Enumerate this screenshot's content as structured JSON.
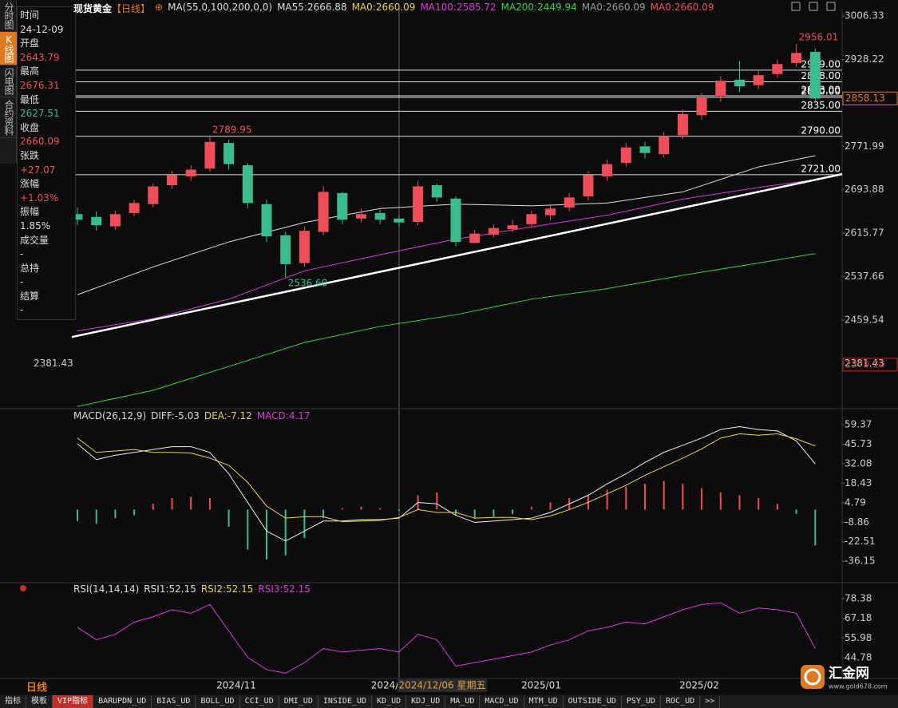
{
  "sidebar": {
    "tabs": [
      "分时图",
      "K线图",
      "闪电图",
      "合约资料"
    ]
  },
  "info_panel": {
    "rows": [
      {
        "label": "时间",
        "value": "24-12-09",
        "color": "#dddddd"
      },
      {
        "label": "开盘",
        "value": "2643.79",
        "color": "#ee4e5a"
      },
      {
        "label": "最高",
        "value": "2676.31",
        "color": "#ee4e5a"
      },
      {
        "label": "最低",
        "value": "2627.51",
        "color": "#3cbc8d"
      },
      {
        "label": "收盘",
        "value": "2660.09",
        "color": "#ee4e5a"
      },
      {
        "label": "张跌",
        "value": "+27.07",
        "color": "#ee4e5a"
      },
      {
        "label": "涨幅",
        "value": "+1.03%",
        "color": "#ee4e5a"
      },
      {
        "label": "振幅",
        "value": "1.85%",
        "color": "#dddddd"
      },
      {
        "label": "成交量",
        "value": "-",
        "color": "#dddddd"
      },
      {
        "label": "总持",
        "value": "-",
        "color": "#dddddd"
      },
      {
        "label": "结算",
        "value": "-",
        "color": "#dddddd"
      }
    ]
  },
  "main": {
    "title": "现货黄金",
    "period": "【日线】",
    "indicators": [
      {
        "text": "MA(55,0,100,200,0,0)",
        "color": "#dddddd"
      },
      {
        "text": "MA55:2666.88",
        "color": "#dddddd"
      },
      {
        "text": "MA0:2660.09",
        "color": "#e8d44d"
      },
      {
        "text": "MA100:2585.72",
        "color": "#d63bd6"
      },
      {
        "text": "MA200:2449.94",
        "color": "#3ccf3c"
      },
      {
        "text": "MA0:2660.09",
        "color": "#999999"
      },
      {
        "text": "MA0:2660.09",
        "color": "#ee4e5a"
      }
    ],
    "ylim": [
      2300,
      3018
    ],
    "yticks": [
      3006.33,
      2928.22,
      2771.99,
      2693.88,
      2615.77,
      2537.66,
      2459.54,
      2381.43
    ],
    "left_label": 2381.43,
    "candles": {
      "open": [
        2650,
        2645,
        2628,
        2652,
        2668,
        2702,
        2718,
        2732,
        2778,
        2738,
        2668,
        2612,
        2562,
        2618,
        2688,
        2642,
        2652,
        2642,
        2636,
        2702,
        2678,
        2598,
        2613,
        2623,
        2632,
        2648,
        2662,
        2682,
        2718,
        2742,
        2772,
        2758,
        2792,
        2828,
        2862,
        2892,
        2882,
        2902,
        2922,
        2942
      ],
      "high": [
        2662,
        2655,
        2656,
        2676,
        2705,
        2728,
        2738,
        2789.95,
        2784,
        2742,
        2676,
        2618,
        2628,
        2700,
        2690,
        2660,
        2658,
        2648,
        2710,
        2705,
        2682,
        2622,
        2632,
        2640,
        2656,
        2668,
        2688,
        2728,
        2748,
        2778,
        2780,
        2798,
        2838,
        2868,
        2898,
        2925,
        2908,
        2928,
        2956.01,
        2948
      ],
      "low": [
        2630,
        2620,
        2622,
        2646,
        2662,
        2695,
        2710,
        2726,
        2730,
        2660,
        2600,
        2536.6,
        2555,
        2612,
        2632,
        2635,
        2632,
        2628,
        2630,
        2672,
        2592,
        2600,
        2608,
        2618,
        2626,
        2640,
        2655,
        2675,
        2710,
        2735,
        2750,
        2752,
        2785,
        2820,
        2852,
        2870,
        2875,
        2895,
        2915,
        2850
      ],
      "close": [
        2640,
        2630,
        2650,
        2670,
        2700,
        2720,
        2730,
        2780,
        2740,
        2670,
        2610,
        2560,
        2620,
        2690,
        2640,
        2650,
        2640,
        2635,
        2700,
        2680,
        2600,
        2615,
        2625,
        2630,
        2650,
        2660,
        2680,
        2720,
        2740,
        2770,
        2760,
        2790,
        2830,
        2860,
        2890,
        2880,
        2900,
        2920,
        2940,
        2858
      ]
    },
    "ma_lines": {
      "index": [
        0,
        4,
        8,
        12,
        16,
        20,
        24,
        28,
        32,
        36,
        39
      ],
      "series": [
        {
          "color": "#dddddd",
          "values": [
            2505,
            2555,
            2600,
            2635,
            2660,
            2668,
            2665,
            2670,
            2690,
            2735,
            2755
          ]
        },
        {
          "color": "#d63bd6",
          "values": [
            2440,
            2462,
            2497,
            2548,
            2577,
            2605,
            2627,
            2648,
            2677,
            2698,
            2712
          ]
        },
        {
          "color": "#3ccf3c",
          "values": [
            2304,
            2333,
            2376,
            2419,
            2448,
            2469,
            2497,
            2516,
            2540,
            2562,
            2579
          ]
        }
      ]
    },
    "trendline": [
      2429,
      2722
    ],
    "levels": [
      {
        "value": 2909,
        "label": "2909.00"
      },
      {
        "value": 2888,
        "label": "2888.00"
      },
      {
        "value": 2863,
        "label": "2863.00"
      },
      {
        "value": 2860,
        "label": "2860.00"
      },
      {
        "value": 2835,
        "label": "2835.00"
      },
      {
        "value": 2790,
        "label": "2790.00"
      },
      {
        "value": 2721,
        "label": "2721.00"
      }
    ],
    "price_tags": [
      {
        "value": 2858.13,
        "color": "#e07a20"
      },
      {
        "value": 2379.2,
        "label": "2379.20",
        "color": "#c0302a"
      }
    ],
    "annotations": [
      {
        "value": 2956.01,
        "color": "#ee4e5a"
      },
      {
        "value": 2789.95,
        "color": "#ee4e5a"
      },
      {
        "value": 2536.6,
        "label": "2536.60",
        "color": "#3cbc8d"
      }
    ],
    "x_labels": [
      "2024/11",
      "2024/",
      "2024/12/06 星期五",
      "2025/01",
      "2025/02"
    ]
  },
  "macd": {
    "header": [
      {
        "text": "MACD(26,12,9)",
        "color": "#dddddd"
      },
      {
        "text": "DIFF:-5.03",
        "color": "#dddddd"
      },
      {
        "text": "DEA:-7.12",
        "color": "#e8d44d"
      },
      {
        "text": "MACD:4.17",
        "color": "#d63bd6"
      }
    ],
    "ylim": [
      -50,
      70
    ],
    "yticks": [
      59.37,
      45.73,
      32.08,
      18.43,
      4.79,
      -8.86,
      -22.51,
      -36.15
    ],
    "macd": [
      -8,
      -10,
      -6,
      -4,
      4,
      8,
      9,
      8,
      -12,
      -28,
      -35,
      -32,
      -20,
      -6,
      1,
      2,
      1,
      -1,
      10,
      12,
      -4,
      -6,
      -5,
      -3,
      2,
      5,
      8,
      10,
      14,
      16,
      18,
      20,
      18,
      15,
      12,
      10,
      8,
      4,
      -3,
      -25
    ],
    "diff": [
      46,
      35,
      38,
      40,
      42,
      44,
      44,
      40,
      25,
      5,
      -15,
      -22,
      -15,
      -8,
      -8,
      -7,
      -7,
      -6,
      5,
      4,
      -4,
      -9,
      -8,
      -7,
      -6,
      -2,
      4,
      10,
      18,
      25,
      33,
      40,
      45,
      50,
      56,
      58,
      56,
      55,
      48,
      32
    ],
    "dea": [
      50,
      40,
      41,
      42,
      40,
      40,
      39.5,
      36,
      31,
      19,
      2.5,
      -6,
      -5,
      -5,
      -8.5,
      -8,
      -7.5,
      -5.5,
      0,
      -2,
      -2,
      -6,
      -5.5,
      -5.5,
      -7,
      -4.5,
      0,
      5,
      11,
      17,
      24,
      30,
      36,
      42.5,
      50,
      53,
      52,
      53,
      49.5,
      44.5
    ]
  },
  "rsi": {
    "header": [
      {
        "text": "RSI(14,14,14)",
        "color": "#dddddd"
      },
      {
        "text": "RSI1:52.15",
        "color": "#dddddd"
      },
      {
        "text": "RSI2:52.15",
        "color": "#e8d44d"
      },
      {
        "text": "RSI3:52.15",
        "color": "#d63bd6"
      }
    ],
    "ylim": [
      33,
      86
    ],
    "yticks": [
      78.38,
      67.18,
      55.98,
      44.78
    ],
    "values": [
      62,
      55,
      58,
      65,
      68,
      72,
      70,
      75,
      60,
      45,
      38,
      36,
      42,
      50,
      48,
      49,
      50,
      48,
      58,
      55,
      40,
      42,
      44,
      46,
      48,
      52,
      55,
      60,
      62,
      65,
      64,
      68,
      72,
      75,
      76,
      70,
      73,
      72,
      70,
      50
    ]
  },
  "footer": {
    "period": "日线",
    "tabs": [
      "指标",
      "模板",
      "VIP指标",
      "BARUPDN_UD",
      "BIAS_UD",
      "BOLL_UD",
      "CCI_UD",
      "DMI_UD",
      "INSIDE_UD",
      "KD_UD",
      "KDJ_UD",
      "MA_UD",
      "MACD_UD",
      "MTM_UD",
      "OUTSIDE_UD",
      "PSY_UD",
      "ROC_UD",
      ">>"
    ]
  },
  "logo": {
    "name": "汇金网",
    "url": "www.gold678.com"
  }
}
